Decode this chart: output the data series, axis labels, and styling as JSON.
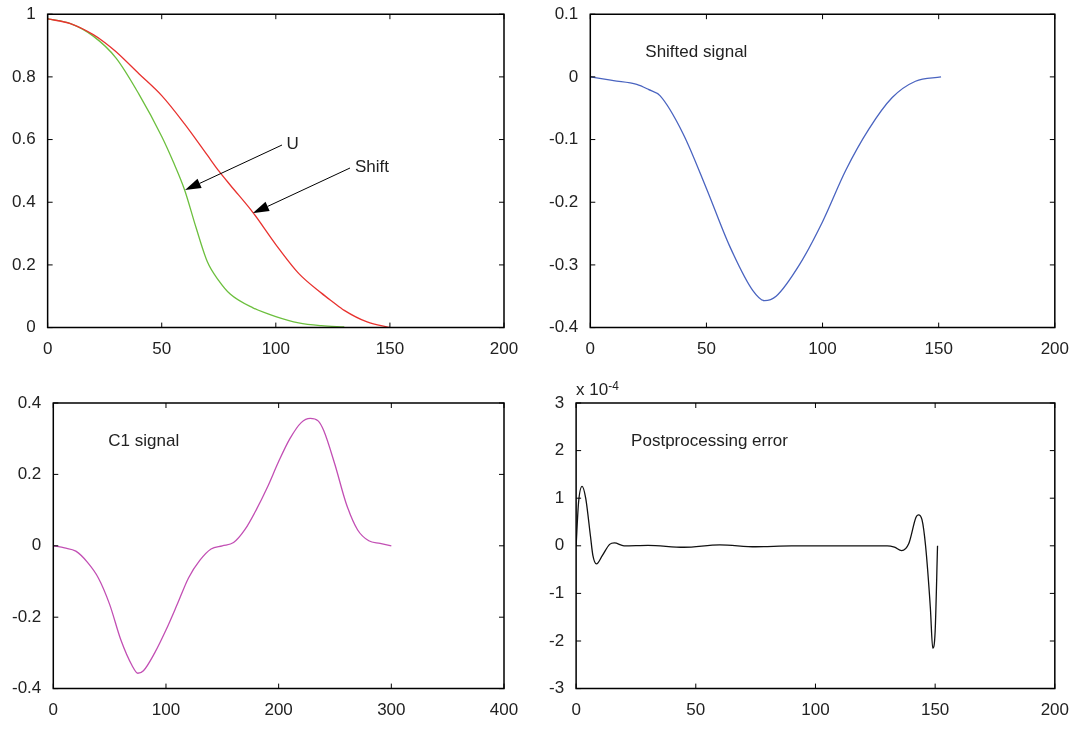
{
  "chart_data": [
    {
      "type": "line",
      "marker": "none",
      "xlim": [
        0,
        200
      ],
      "xticks": [
        0,
        50,
        100,
        150,
        200
      ],
      "ylim": [
        0,
        1
      ],
      "yticks": [
        0,
        0.2,
        0.4,
        0.6,
        0.8,
        1
      ],
      "annotations": [
        "Shift",
        "U"
      ],
      "series": [
        {
          "color": "#e8322f",
          "x": [
            0,
            10,
            20,
            25,
            30,
            40,
            50,
            60,
            70,
            75,
            80,
            90,
            100,
            110,
            120,
            125,
            130,
            140,
            150
          ],
          "values": [
            0.985,
            0.97,
            0.935,
            0.91,
            0.88,
            0.81,
            0.74,
            0.65,
            0.55,
            0.5,
            0.455,
            0.367,
            0.265,
            0.173,
            0.11,
            0.082,
            0.055,
            0.018,
            0
          ]
        },
        {
          "color": "#6cbf3e",
          "x": [
            0,
            10,
            20,
            30,
            40,
            50,
            55,
            60,
            65,
            70,
            75,
            80,
            90,
            100,
            110,
            120,
            130
          ],
          "values": [
            0.985,
            0.97,
            0.93,
            0.86,
            0.745,
            0.61,
            0.53,
            0.44,
            0.32,
            0.21,
            0.15,
            0.107,
            0.063,
            0.035,
            0.015,
            0.006,
            0.002
          ]
        }
      ]
    },
    {
      "type": "line",
      "marker": "none",
      "title": "Shifted signal",
      "xlim": [
        0,
        200
      ],
      "xticks": [
        0,
        50,
        100,
        150,
        200
      ],
      "ylim": [
        -0.4,
        0.1
      ],
      "yticks": [
        -0.4,
        -0.3,
        -0.2,
        -0.1,
        0,
        0.1
      ],
      "series": [
        {
          "color": "#4a64c0",
          "x": [
            0,
            10,
            20,
            25,
            30,
            40,
            50,
            60,
            70,
            75,
            80,
            90,
            100,
            110,
            120,
            130,
            140,
            151
          ],
          "values": [
            0,
            -0.006,
            -0.012,
            -0.02,
            -0.03,
            -0.091,
            -0.178,
            -0.27,
            -0.341,
            -0.357,
            -0.35,
            -0.3,
            -0.231,
            -0.149,
            -0.083,
            -0.033,
            -0.007,
            0
          ]
        }
      ]
    },
    {
      "type": "line",
      "marker": "none",
      "title": "C1 signal",
      "xlim": [
        0,
        400
      ],
      "xticks": [
        0,
        100,
        200,
        300,
        400
      ],
      "ylim": [
        -0.4,
        0.4
      ],
      "yticks": [
        -0.4,
        -0.2,
        0,
        0.2,
        0.4
      ],
      "series": [
        {
          "color": "#c24fb4",
          "x": [
            0,
            10,
            20,
            30,
            40,
            50,
            60,
            70,
            75,
            80,
            90,
            100,
            110,
            120,
            130,
            140,
            150,
            160,
            170,
            180,
            190,
            200,
            210,
            220,
            228,
            235,
            240,
            250,
            260,
            270,
            280,
            290,
            300
          ],
          "values": [
            0,
            -0.006,
            -0.015,
            -0.045,
            -0.09,
            -0.164,
            -0.264,
            -0.336,
            -0.357,
            -0.35,
            -0.3,
            -0.236,
            -0.164,
            -0.09,
            -0.041,
            -0.009,
            0,
            0.009,
            0.045,
            0.1,
            0.164,
            0.236,
            0.3,
            0.345,
            0.357,
            0.35,
            0.323,
            0.227,
            0.118,
            0.045,
            0.014,
            0.007,
            0
          ]
        }
      ]
    },
    {
      "type": "line",
      "marker": "none",
      "title": "Postprocessing error",
      "xlim": [
        0,
        200
      ],
      "xticks": [
        0,
        50,
        100,
        150,
        200
      ],
      "ylim": [
        -3,
        3
      ],
      "yticks": [
        -3,
        -2,
        -1,
        0,
        1,
        2,
        3
      ],
      "annotations": [
        "x 10$^{-4}$"
      ],
      "series": [
        {
          "color": "#111111",
          "x": [
            0,
            1,
            2.5,
            4,
            6,
            7,
            8.5,
            11,
            14,
            16,
            20,
            30,
            45,
            60,
            75,
            90,
            130,
            133,
            136,
            139,
            142,
            143,
            144.5,
            146,
            148,
            149,
            150,
            151
          ],
          "values": [
            0,
            0.9,
            1.25,
            1,
            0.2,
            -0.2,
            -0.38,
            -0.2,
            0.03,
            0.06,
            0,
            0.01,
            -0.03,
            0.02,
            -0.02,
            0,
            0,
            -0.03,
            -0.1,
            0.05,
            0.6,
            0.65,
            0.55,
            0,
            -1.3,
            -2.15,
            -1.8,
            0
          ]
        }
      ]
    }
  ]
}
